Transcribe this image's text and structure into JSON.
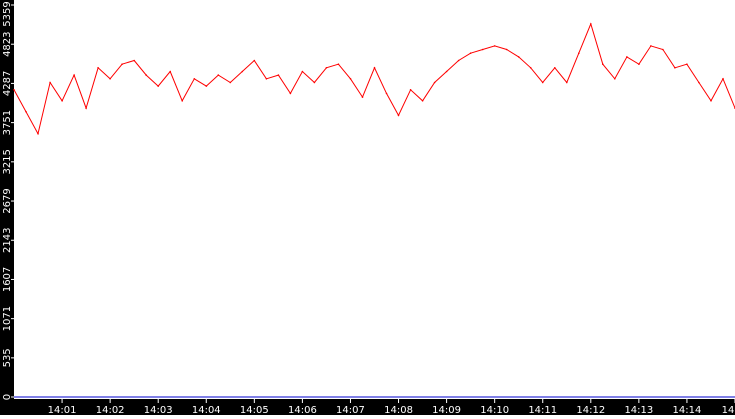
{
  "chart_data": {
    "type": "line",
    "title": "",
    "xlabel": "",
    "ylabel": "",
    "ylim": [
      0,
      5359
    ],
    "xlim": [
      "14:00:00",
      "14:15:00"
    ],
    "y_ticks": [
      0,
      535,
      1071,
      1607,
      2143,
      2679,
      3215,
      3751,
      4287,
      4823,
      5359
    ],
    "y_tick_labels": [
      "0",
      "535",
      "1071",
      "1607",
      "2143",
      "2679",
      "3215",
      "3751",
      "4287",
      "4823",
      "5359"
    ],
    "x_ticks": [
      "14:01",
      "14:02",
      "14:03",
      "14:04",
      "14:05",
      "14:06",
      "14:07",
      "14:08",
      "14:09",
      "14:10",
      "14:11",
      "14:12",
      "14:13",
      "14:14",
      "14"
    ],
    "grid": false,
    "legend": "none",
    "colors": {
      "series": "#ff0000",
      "axis_bg": "#000000",
      "axis_text": "#ffffff",
      "baseline": "#0000cc"
    },
    "series": [
      {
        "x": [
          "14:00:00",
          "14:00:15",
          "14:00:30",
          "14:00:45",
          "14:01:00",
          "14:01:15",
          "14:01:30",
          "14:01:45",
          "14:02:00",
          "14:02:15",
          "14:02:30",
          "14:02:45",
          "14:03:00",
          "14:03:15",
          "14:03:30",
          "14:03:45",
          "14:04:00",
          "14:04:15",
          "14:04:30",
          "14:04:45",
          "14:05:00",
          "14:05:15",
          "14:05:30",
          "14:05:45",
          "14:06:00",
          "14:06:15",
          "14:06:30",
          "14:06:45",
          "14:07:00",
          "14:07:15",
          "14:07:30",
          "14:07:45",
          "14:08:00",
          "14:08:15",
          "14:08:30",
          "14:08:45",
          "14:09:00",
          "14:09:15",
          "14:09:30",
          "14:09:45",
          "14:10:00",
          "14:10:15",
          "14:10:30",
          "14:10:45",
          "14:11:00",
          "14:11:15",
          "14:11:30",
          "14:11:45",
          "14:12:00",
          "14:12:15",
          "14:12:30",
          "14:12:45",
          "14:13:00",
          "14:13:15",
          "14:13:30",
          "14:13:45",
          "14:14:00",
          "14:14:15",
          "14:14:30",
          "14:14:45",
          "14:15:00"
        ],
        "values": [
          4200,
          3900,
          3600,
          4300,
          4050,
          4400,
          3950,
          4500,
          4350,
          4550,
          4600,
          4400,
          4250,
          4450,
          4050,
          4350,
          4250,
          4400,
          4300,
          4450,
          4600,
          4350,
          4400,
          4150,
          4450,
          4300,
          4500,
          4550,
          4350,
          4100,
          4500,
          4150,
          3850,
          4200,
          4050,
          4300,
          4450,
          4600,
          4700,
          4750,
          4800,
          4750,
          4650,
          4500,
          4300,
          4500,
          4300,
          4700,
          5100,
          4550,
          4350,
          4650,
          4550,
          4800,
          4750,
          4500,
          4550,
          4300,
          4050,
          4350,
          3950
        ]
      }
    ]
  }
}
